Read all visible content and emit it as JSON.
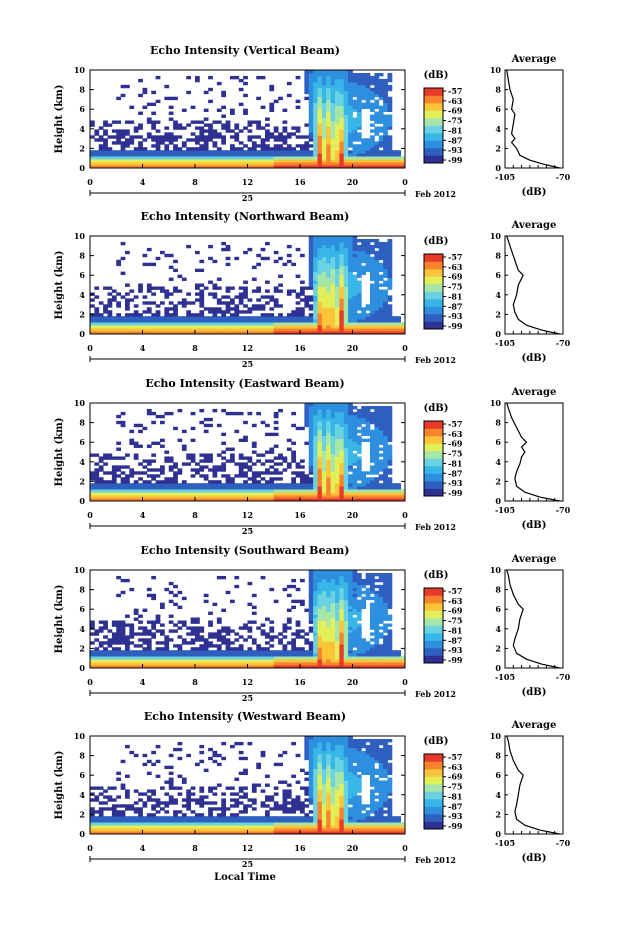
{
  "figure": {
    "x_axis_label": "Local Time",
    "date_label": "Feb 2012",
    "day_label": "25"
  },
  "chart_data": [
    {
      "type": "heatmap",
      "title": "Echo Intensity (Vertical Beam)",
      "ylabel": "Height (km)",
      "xlabel": "Local Time",
      "x_ticks": [
        "0",
        "4",
        "8",
        "12",
        "16",
        "20",
        "0"
      ],
      "y_ticks": [
        "0",
        "2",
        "4",
        "6",
        "8",
        "10"
      ],
      "xlim": [
        0,
        24
      ],
      "ylim": [
        0,
        10
      ],
      "colorbar": {
        "label": "(dB)",
        "ticks": [
          "-57",
          "-63",
          "-69",
          "-75",
          "-81",
          "-87",
          "-93",
          "-99"
        ]
      },
      "average": {
        "title": "Average",
        "xlabel": "(dB)",
        "x_ticks": [
          "-105",
          "-70"
        ],
        "y_ticks": [
          "0",
          "2",
          "4",
          "6",
          "8",
          "10"
        ],
        "xlim": [
          -105,
          -70
        ],
        "profile": [
          [
            -72,
            0
          ],
          [
            -82,
            0.4
          ],
          [
            -90,
            0.8
          ],
          [
            -96,
            1.3
          ],
          [
            -98,
            2
          ],
          [
            -101,
            2.6
          ],
          [
            -99,
            3
          ],
          [
            -101,
            3.5
          ],
          [
            -100,
            4.5
          ],
          [
            -99,
            5.5
          ],
          [
            -101,
            6
          ],
          [
            -100,
            7
          ],
          [
            -102,
            8
          ],
          [
            -103,
            9
          ],
          [
            -104,
            10
          ]
        ]
      }
    },
    {
      "type": "heatmap",
      "title": "Echo Intensity (Northward Beam)",
      "ylabel": "Height (km)",
      "xlabel": "Local Time",
      "x_ticks": [
        "0",
        "4",
        "8",
        "12",
        "16",
        "20",
        "0"
      ],
      "y_ticks": [
        "0",
        "2",
        "4",
        "6",
        "8",
        "10"
      ],
      "xlim": [
        0,
        24
      ],
      "ylim": [
        0,
        10
      ],
      "colorbar": {
        "label": "(dB)",
        "ticks": [
          "-57",
          "-63",
          "-69",
          "-75",
          "-81",
          "-87",
          "-93",
          "-99"
        ]
      },
      "average": {
        "title": "Average",
        "xlabel": "(dB)",
        "x_ticks": [
          "-105",
          "-70"
        ],
        "y_ticks": [
          "0",
          "2",
          "4",
          "6",
          "8",
          "10"
        ],
        "xlim": [
          -105,
          -70
        ],
        "profile": [
          [
            -72,
            0
          ],
          [
            -83,
            0.4
          ],
          [
            -92,
            0.9
          ],
          [
            -97,
            1.5
          ],
          [
            -99,
            2.2
          ],
          [
            -100,
            3
          ],
          [
            -98,
            4
          ],
          [
            -97,
            5
          ],
          [
            -94,
            6
          ],
          [
            -97,
            6.5
          ],
          [
            -99,
            7.5
          ],
          [
            -101,
            8.5
          ],
          [
            -103,
            9.5
          ],
          [
            -104,
            10
          ]
        ]
      }
    },
    {
      "type": "heatmap",
      "title": "Echo Intensity (Eastward Beam)",
      "ylabel": "Height (km)",
      "xlabel": "Local Time",
      "x_ticks": [
        "0",
        "4",
        "8",
        "12",
        "16",
        "20",
        "0"
      ],
      "y_ticks": [
        "0",
        "2",
        "4",
        "6",
        "8",
        "10"
      ],
      "xlim": [
        0,
        24
      ],
      "ylim": [
        0,
        10
      ],
      "colorbar": {
        "label": "(dB)",
        "ticks": [
          "-57",
          "-63",
          "-69",
          "-75",
          "-81",
          "-87",
          "-93",
          "-99"
        ]
      },
      "average": {
        "title": "Average",
        "xlabel": "(dB)",
        "x_ticks": [
          "-105",
          "-70"
        ],
        "y_ticks": [
          "0",
          "2",
          "4",
          "6",
          "8",
          "10"
        ],
        "xlim": [
          -105,
          -70
        ],
        "profile": [
          [
            -72,
            0
          ],
          [
            -84,
            0.4
          ],
          [
            -93,
            0.9
          ],
          [
            -98,
            1.5
          ],
          [
            -99,
            2.3
          ],
          [
            -98,
            3
          ],
          [
            -96,
            3.8
          ],
          [
            -95,
            4.5
          ],
          [
            -93,
            5
          ],
          [
            -95,
            5.5
          ],
          [
            -92,
            6
          ],
          [
            -95,
            6.5
          ],
          [
            -98,
            7.5
          ],
          [
            -101,
            8.5
          ],
          [
            -103,
            9.5
          ],
          [
            -104,
            10
          ]
        ]
      }
    },
    {
      "type": "heatmap",
      "title": "Echo Intensity (Southward Beam)",
      "ylabel": "Height (km)",
      "xlabel": "Local Time",
      "x_ticks": [
        "0",
        "4",
        "8",
        "12",
        "16",
        "20",
        "0"
      ],
      "y_ticks": [
        "0",
        "2",
        "4",
        "6",
        "8",
        "10"
      ],
      "xlim": [
        0,
        24
      ],
      "ylim": [
        0,
        10
      ],
      "colorbar": {
        "label": "(dB)",
        "ticks": [
          "-57",
          "-63",
          "-69",
          "-75",
          "-81",
          "-87",
          "-93",
          "-99"
        ]
      },
      "average": {
        "title": "Average",
        "xlabel": "(dB)",
        "x_ticks": [
          "-105",
          "-70"
        ],
        "y_ticks": [
          "0",
          "2",
          "4",
          "6",
          "8",
          "10"
        ],
        "xlim": [
          -105,
          -70
        ],
        "profile": [
          [
            -72,
            0
          ],
          [
            -83,
            0.4
          ],
          [
            -92,
            0.9
          ],
          [
            -98,
            1.5
          ],
          [
            -100,
            2.3
          ],
          [
            -99,
            3
          ],
          [
            -97,
            4
          ],
          [
            -96,
            5
          ],
          [
            -94,
            6
          ],
          [
            -97,
            6.5
          ],
          [
            -100,
            7.5
          ],
          [
            -102,
            8.5
          ],
          [
            -103,
            9.5
          ],
          [
            -104,
            10
          ]
        ]
      }
    },
    {
      "type": "heatmap",
      "title": "Echo Intensity (Westward Beam)",
      "ylabel": "Height (km)",
      "xlabel": "Local Time",
      "x_ticks": [
        "0",
        "4",
        "8",
        "12",
        "16",
        "20",
        "0"
      ],
      "y_ticks": [
        "0",
        "2",
        "4",
        "6",
        "8",
        "10"
      ],
      "xlim": [
        0,
        24
      ],
      "ylim": [
        0,
        10
      ],
      "colorbar": {
        "label": "(dB)",
        "ticks": [
          "-57",
          "-63",
          "-69",
          "-75",
          "-81",
          "-87",
          "-93",
          "-99"
        ]
      },
      "average": {
        "title": "Average",
        "xlabel": "(dB)",
        "x_ticks": [
          "-105",
          "-70"
        ],
        "y_ticks": [
          "0",
          "2",
          "4",
          "6",
          "8",
          "10"
        ],
        "xlim": [
          -105,
          -70
        ],
        "profile": [
          [
            -72,
            0
          ],
          [
            -84,
            0.4
          ],
          [
            -93,
            0.9
          ],
          [
            -98,
            1.5
          ],
          [
            -99,
            2.3
          ],
          [
            -98,
            3
          ],
          [
            -97,
            4
          ],
          [
            -96,
            5
          ],
          [
            -94,
            6
          ],
          [
            -97,
            6.5
          ],
          [
            -100,
            7.5
          ],
          [
            -102,
            8.5
          ],
          [
            -103,
            9.5
          ],
          [
            -104,
            10
          ]
        ]
      }
    }
  ],
  "colormap": [
    "#2e3192",
    "#2f5fbf",
    "#2f8fdf",
    "#38b6e8",
    "#6ad2e0",
    "#a6e6a8",
    "#e3ef5a",
    "#fcc539",
    "#f9822c",
    "#e83a2a"
  ]
}
